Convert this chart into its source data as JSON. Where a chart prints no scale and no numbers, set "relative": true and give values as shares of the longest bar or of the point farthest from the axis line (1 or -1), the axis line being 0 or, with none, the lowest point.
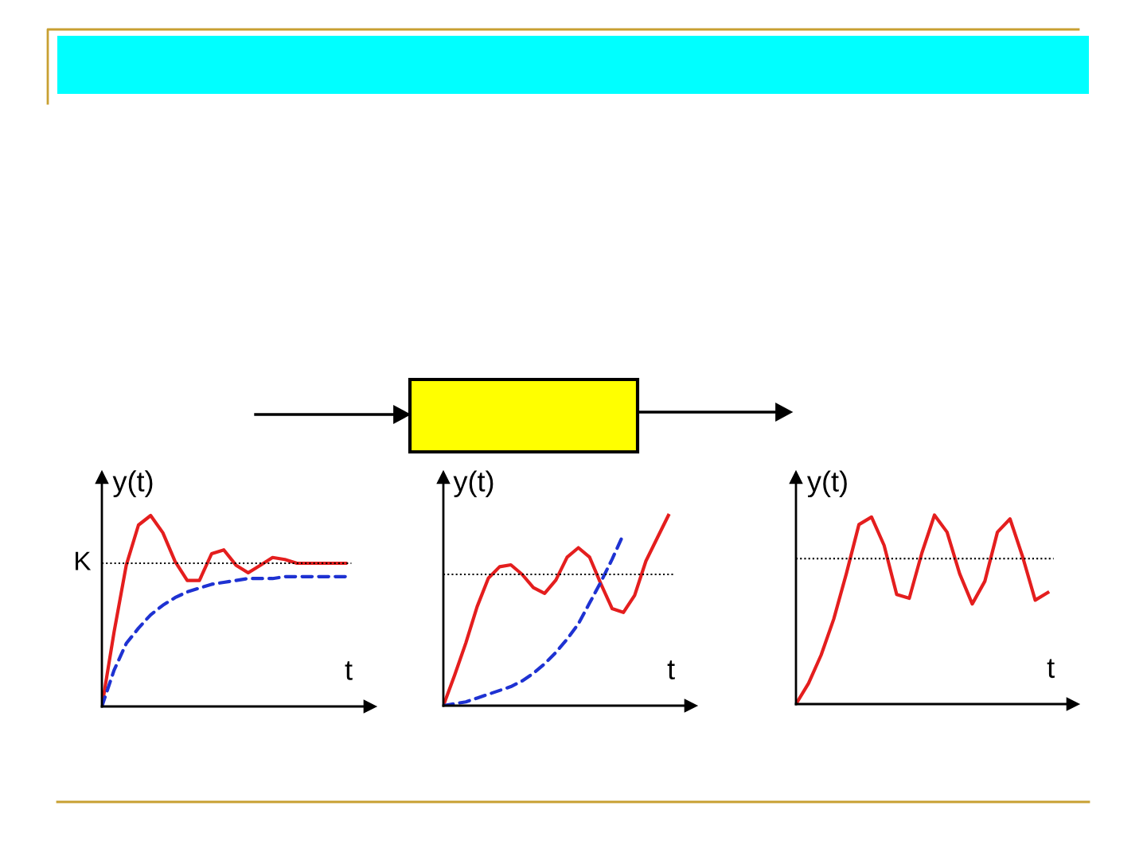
{
  "chart_data": [
    {
      "type": "line",
      "relative": true,
      "xlabel": "t",
      "ylabel": "y(t)",
      "categories": [
        null,
        null,
        null,
        null,
        null,
        null,
        null,
        null,
        null,
        null,
        null,
        null,
        null,
        null,
        null,
        null,
        null,
        null,
        null,
        null,
        null
      ],
      "series": [
        {
          "color": "#e41e1e",
          "line_style": "solid",
          "values": [
            0,
            0.39,
            0.74,
            0.95,
            1.0,
            0.91,
            0.76,
            0.66,
            0.66,
            0.8,
            0.82,
            0.74,
            0.7,
            0.74,
            0.78,
            0.77,
            0.75,
            0.75,
            0.75,
            0.75,
            0.75
          ]
        },
        {
          "color": "#1e32d2",
          "line_style": "dashed",
          "values": [
            0,
            0.19,
            0.33,
            0.41,
            0.48,
            0.53,
            0.57,
            0.6,
            0.62,
            0.64,
            0.65,
            0.66,
            0.67,
            0.67,
            0.67,
            0.68,
            0.68,
            0.68,
            0.68,
            0.68,
            0.68
          ]
        }
      ],
      "ref_lines": [
        {
          "axis": "y",
          "value": 0.75,
          "label": "K",
          "color": "#000000",
          "line_style": "dotted"
        }
      ],
      "legend": false
    },
    {
      "type": "line",
      "relative": true,
      "xlabel": "t",
      "ylabel": "y(t)",
      "categories": [
        null,
        null,
        null,
        null,
        null,
        null,
        null,
        null,
        null,
        null,
        null,
        null,
        null,
        null,
        null,
        null,
        null,
        null,
        null,
        null,
        null
      ],
      "series": [
        {
          "color": "#e41e1e",
          "line_style": "solid",
          "values": [
            0,
            0.16,
            0.33,
            0.52,
            0.67,
            0.73,
            0.74,
            0.69,
            0.62,
            0.59,
            0.66,
            0.78,
            0.83,
            0.78,
            0.64,
            0.51,
            0.49,
            0.58,
            0.76,
            0.88,
            1.0
          ]
        },
        {
          "color": "#1e32d2",
          "line_style": "dashed",
          "values": [
            0,
            0.01,
            0.02,
            0.04,
            0.06,
            0.08,
            0.1,
            0.13,
            0.17,
            0.22,
            0.28,
            0.35,
            0.43,
            0.54,
            0.65,
            0.77,
            0.9,
            null,
            null,
            null,
            null
          ]
        }
      ],
      "ref_lines": [
        {
          "axis": "y",
          "value": 0.69,
          "color": "#000000",
          "line_style": "dotted"
        }
      ],
      "legend": false
    },
    {
      "type": "line",
      "relative": true,
      "xlabel": "t",
      "ylabel": "y(t)",
      "categories": [
        null,
        null,
        null,
        null,
        null,
        null,
        null,
        null,
        null,
        null,
        null,
        null,
        null,
        null,
        null,
        null,
        null,
        null,
        null,
        null,
        null
      ],
      "series": [
        {
          "color": "#e41e1e",
          "line_style": "solid",
          "values": [
            0,
            0.11,
            0.26,
            0.45,
            0.69,
            0.95,
            0.99,
            0.84,
            0.58,
            0.56,
            0.8,
            1.0,
            0.91,
            0.69,
            0.53,
            0.65,
            0.91,
            0.98,
            0.78,
            0.55,
            0.59
          ]
        }
      ],
      "ref_lines": [
        {
          "axis": "y",
          "value": 0.77,
          "color": "#000000",
          "line_style": "dotted"
        }
      ],
      "legend": false
    }
  ]
}
